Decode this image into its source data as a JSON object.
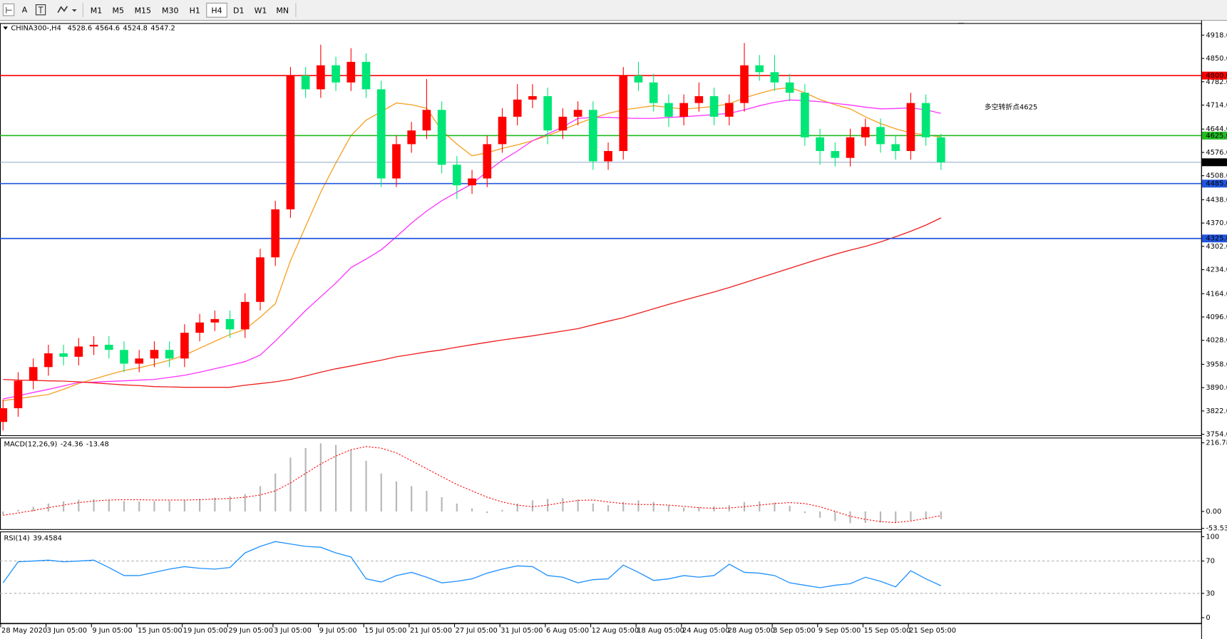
{
  "toolbar": {
    "text_button": "A",
    "timeframes": [
      "M1",
      "M5",
      "M15",
      "M30",
      "H1",
      "H4",
      "D1",
      "W1",
      "MN"
    ],
    "active": "H4"
  },
  "chart_data": [
    {
      "type": "candlestick",
      "title": "CHINA300-,H4",
      "title_values": [
        4528.6,
        4564.6,
        4524.8,
        4547.2
      ],
      "annotation": "多空转折点4625",
      "annotation_color": "#e8202a",
      "categories": [
        "28 May 2020",
        null,
        null,
        "3 Jun 05:00",
        null,
        null,
        "9 Jun 05:00",
        null,
        null,
        "15 Jun 05:00",
        null,
        null,
        "19 Jun 05:00",
        null,
        null,
        "29 Jun 05:00",
        null,
        null,
        "3 Jul 05:00",
        null,
        null,
        "9 Jul 05:00",
        null,
        null,
        "15 Jul 05:00",
        null,
        null,
        "21 Jul 05:00",
        null,
        null,
        "27 Jul 05:00",
        null,
        null,
        "31 Jul 05:00",
        null,
        null,
        "6 Aug 05:00",
        null,
        null,
        "12 Aug 05:00",
        null,
        null,
        "18 Aug 05:00",
        null,
        null,
        "24 Aug 05:00",
        null,
        null,
        "28 Aug 05:00",
        null,
        null,
        "3 Sep 05:00",
        null,
        null,
        "9 Sep 05:00",
        null,
        null,
        "15 Sep 05:00",
        null,
        null,
        "21 Sep 05:00",
        null,
        null
      ],
      "open": [
        3790,
        3830,
        3910,
        3950,
        3990,
        3980,
        4010,
        4015,
        4000,
        3960,
        3975,
        4000,
        3975,
        4050,
        4080,
        4090,
        4060,
        4140,
        4270,
        4410,
        4800,
        4760,
        4830,
        4780,
        4840,
        4760,
        4500,
        4600,
        4640,
        4700,
        4540,
        4480,
        4500,
        4600,
        4680,
        4730,
        4740,
        4640,
        4680,
        4700,
        4550,
        4580,
        4800,
        4780,
        4720,
        4680,
        4720,
        4740,
        4680,
        4720,
        4830,
        4810,
        4780,
        4750,
        4620,
        4580,
        4560,
        4620,
        4650,
        4600,
        4580,
        4720,
        4620
      ],
      "high": [
        3855,
        3935,
        3975,
        4015,
        4015,
        4035,
        4040,
        4040,
        4025,
        4000,
        4025,
        4025,
        4075,
        4105,
        4115,
        4115,
        4165,
        4295,
        4435,
        4825,
        4825,
        4890,
        4855,
        4880,
        4865,
        4785,
        4625,
        4665,
        4790,
        4725,
        4565,
        4525,
        4625,
        4705,
        4775,
        4775,
        4765,
        4705,
        4725,
        4725,
        4605,
        4825,
        4840,
        4805,
        4745,
        4745,
        4780,
        4765,
        4745,
        4895,
        4860,
        4860,
        4805,
        4775,
        4645,
        4605,
        4645,
        4675,
        4675,
        4625,
        4750,
        4745,
        4630
      ],
      "low": [
        3765,
        3805,
        3885,
        3925,
        3955,
        3955,
        3985,
        3975,
        3935,
        3935,
        3950,
        3950,
        3950,
        4025,
        4055,
        4035,
        4035,
        4115,
        4245,
        4385,
        4735,
        4735,
        4755,
        4755,
        4735,
        4475,
        4475,
        4575,
        4615,
        4515,
        4440,
        4455,
        4475,
        4575,
        4655,
        4705,
        4600,
        4615,
        4655,
        4525,
        4525,
        4555,
        4755,
        4695,
        4650,
        4655,
        4695,
        4655,
        4655,
        4695,
        4785,
        4755,
        4725,
        4595,
        4540,
        4535,
        4535,
        4595,
        4575,
        4555,
        4555,
        4595,
        4524.8
      ],
      "close": [
        3830,
        3910,
        3950,
        3990,
        3980,
        4010,
        4015,
        4000,
        3960,
        3975,
        4000,
        3975,
        4050,
        4080,
        4090,
        4060,
        4140,
        4270,
        4410,
        4800,
        4760,
        4830,
        4780,
        4840,
        4760,
        4500,
        4600,
        4640,
        4700,
        4540,
        4480,
        4500,
        4600,
        4680,
        4730,
        4740,
        4640,
        4680,
        4700,
        4550,
        4580,
        4800,
        4780,
        4720,
        4680,
        4720,
        4740,
        4680,
        4720,
        4830,
        4810,
        4780,
        4750,
        4620,
        4580,
        4560,
        4620,
        4650,
        4600,
        4580,
        4720,
        4620,
        4547.2
      ],
      "up_color": "#ff0000",
      "down_color": "#00e676",
      "lines": [
        {
          "color": "#f5a020",
          "values": [
            3852,
            3858,
            3864,
            3870,
            3885,
            3902,
            3915,
            3928,
            3940,
            3948,
            3958,
            3970,
            3985,
            4005,
            4025,
            4045,
            4060,
            4095,
            4135,
            4260,
            4360,
            4460,
            4545,
            4625,
            4670,
            4695,
            4720,
            4715,
            4705,
            4640,
            4600,
            4566,
            4575,
            4588,
            4598,
            4610,
            4625,
            4642,
            4660,
            4676,
            4690,
            4700,
            4706,
            4712,
            4707,
            4702,
            4706,
            4710,
            4718,
            4735,
            4748,
            4760,
            4765,
            4750,
            4730,
            4715,
            4703,
            4680,
            4660,
            4645,
            4633,
            4627,
            4621
          ]
        },
        {
          "color": "#ff33ff",
          "values": [
            3857,
            3866,
            3876,
            3885,
            3895,
            3905,
            3906,
            3908,
            3910,
            3912,
            3914,
            3920,
            3926,
            3935,
            3945,
            3955,
            3966,
            3985,
            4026,
            4070,
            4115,
            4155,
            4195,
            4240,
            4265,
            4292,
            4330,
            4370,
            4405,
            4435,
            4460,
            4484,
            4520,
            4553,
            4580,
            4610,
            4630,
            4650,
            4675,
            4678,
            4678,
            4676,
            4675,
            4675,
            4678,
            4680,
            4683,
            4686,
            4690,
            4700,
            4712,
            4722,
            4729,
            4727,
            4724,
            4719,
            4714,
            4708,
            4703,
            4704,
            4706,
            4700,
            4690
          ]
        },
        {
          "color": "#ee1c1c",
          "values": [
            3914,
            3912,
            3911,
            3910,
            3909,
            3907,
            3904,
            3901,
            3898,
            3896,
            3893,
            3892,
            3891,
            3891,
            3891,
            3891,
            3897,
            3902,
            3907,
            3914,
            3924,
            3935,
            3945,
            3953,
            3962,
            3970,
            3980,
            3987,
            3994,
            4000,
            4008,
            4015,
            4022,
            4029,
            4035,
            4041,
            4048,
            4055,
            4062,
            4073,
            4084,
            4094,
            4107,
            4120,
            4133,
            4145,
            4157,
            4169,
            4182,
            4196,
            4210,
            4224,
            4238,
            4252,
            4266,
            4279,
            4291,
            4302,
            4315,
            4330,
            4346,
            4364,
            4385
          ]
        }
      ],
      "levels": [
        {
          "value": 4800,
          "label": "4800.0",
          "color": "#ff0000"
        },
        {
          "value": 4625,
          "label": "4625.0",
          "color": "#22bb22"
        },
        {
          "value": 4547.2,
          "label": "4547.2",
          "color": "#7a9cc0"
        },
        {
          "value": 4485,
          "label": "4485.0",
          "color": "#2255dd"
        },
        {
          "value": 4325,
          "label": "4325.0",
          "color": "#2255dd"
        }
      ],
      "ylim": [
        3750,
        4952
      ],
      "yticks": [
        {
          "value": 4918,
          "label": "4918.0"
        },
        {
          "value": 4850,
          "label": "4850.0"
        },
        {
          "value": 4782,
          "label": "4782.0"
        },
        {
          "value": 4714,
          "label": "4714.0"
        },
        {
          "value": 4644,
          "label": "4644.0"
        },
        {
          "value": 4576,
          "label": "4576.0"
        },
        {
          "value": 4508,
          "label": "4508.0"
        },
        {
          "value": 4438,
          "label": "4438.0"
        },
        {
          "value": 4370,
          "label": "4370.0"
        },
        {
          "value": 4302,
          "label": "4302.0"
        },
        {
          "value": 4234,
          "label": "4234.0"
        },
        {
          "value": 4164,
          "label": "4164.0"
        },
        {
          "value": 4096,
          "label": "4096.0"
        },
        {
          "value": 4028,
          "label": "4028.0"
        },
        {
          "value": 3958,
          "label": "3958.0"
        },
        {
          "value": 3890,
          "label": "3890.0"
        },
        {
          "value": 3822,
          "label": "3822.0"
        },
        {
          "value": 3754,
          "label": "3754.0"
        }
      ]
    },
    {
      "type": "macd",
      "title": "MACD(12,26,9)",
      "title_values": [
        -24.36,
        -13.48
      ],
      "histogram": {
        "color": "#b8b8b8",
        "values": [
          -10,
          5,
          15,
          25,
          32,
          37,
          38,
          36,
          33,
          32,
          33,
          34,
          36,
          40,
          44,
          48,
          55,
          80,
          120,
          170,
          200,
          215,
          210,
          195,
          160,
          120,
          95,
          80,
          65,
          45,
          25,
          10,
          -5,
          5,
          25,
          35,
          40,
          42,
          38,
          25,
          20,
          30,
          35,
          30,
          20,
          12,
          14,
          16,
          20,
          30,
          32,
          28,
          18,
          -5,
          -20,
          -30,
          -37,
          -36,
          -35,
          -34,
          -28,
          -25,
          -24.36
        ]
      },
      "signal": {
        "color": "#ff0000",
        "values": [
          -12,
          -5,
          3,
          12,
          20,
          28,
          33,
          36,
          37,
          37,
          36,
          36,
          36,
          37,
          39,
          41,
          45,
          52,
          65,
          90,
          120,
          150,
          175,
          195,
          205,
          200,
          185,
          160,
          135,
          110,
          85,
          65,
          45,
          30,
          20,
          15,
          20,
          28,
          35,
          36,
          30,
          25,
          22,
          22,
          20,
          16,
          12,
          10,
          11,
          15,
          20,
          25,
          28,
          25,
          15,
          0,
          -15,
          -25,
          -32,
          -35,
          -30,
          -22,
          -13.48
        ]
      },
      "ylim": [
        -57,
        232
      ],
      "yticks": [
        216.78,
        {
          "value": 0,
          "label": "0.00"
        },
        -53.53
      ]
    },
    {
      "type": "rsi",
      "title": "RSI(14)",
      "title_values": [
        39.4584
      ],
      "color": "#1e90ff",
      "values": [
        43,
        69,
        70,
        71,
        69,
        70,
        71,
        62,
        52,
        52,
        56,
        60,
        63,
        61,
        60,
        62,
        80,
        88,
        94,
        91,
        88,
        87,
        80,
        75,
        48,
        44,
        52,
        56,
        50,
        43,
        45,
        48,
        55,
        60,
        64,
        63,
        52,
        50,
        43,
        47,
        48,
        65,
        56,
        46,
        48,
        52,
        50,
        52,
        66,
        56,
        55,
        52,
        43,
        40,
        37,
        40,
        42,
        50,
        45,
        38,
        58,
        48,
        39.4584
      ],
      "levels": [
        70,
        30
      ],
      "ylim": [
        -7,
        106
      ],
      "yticks": [
        100,
        70,
        30,
        0
      ]
    }
  ]
}
